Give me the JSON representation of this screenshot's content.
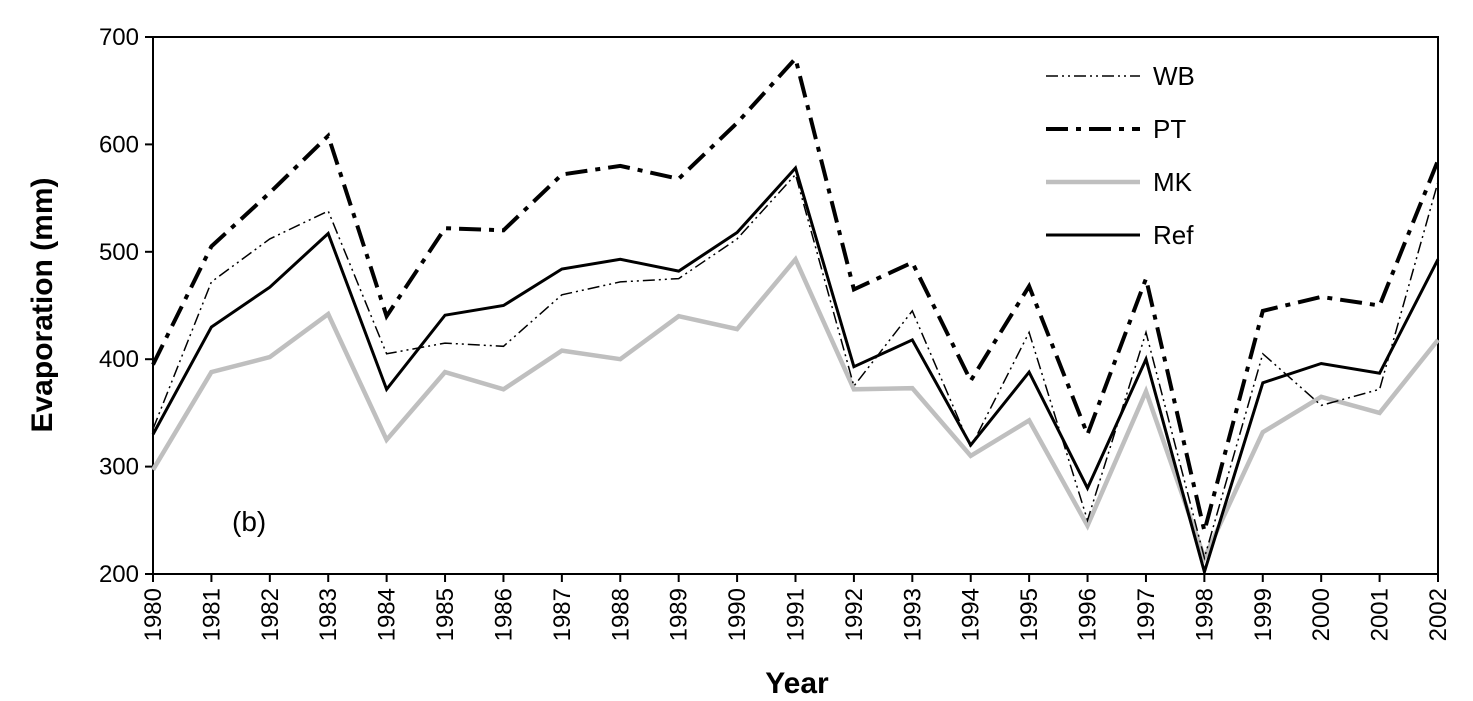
{
  "chart_data": {
    "type": "line",
    "xlabel": "Year",
    "ylabel": "Evaporation (mm)",
    "ylim": [
      200,
      700
    ],
    "yticks": [
      200,
      300,
      400,
      500,
      600,
      700
    ],
    "grid": false,
    "legend_position": "top-right",
    "annotation": "(b)",
    "categories": [
      "1980",
      "1981",
      "1982",
      "1983",
      "1984",
      "1985",
      "1986",
      "1987",
      "1988",
      "1989",
      "1990",
      "1991",
      "1992",
      "1993",
      "1994",
      "1995",
      "1996",
      "1997",
      "1998",
      "1999",
      "2000",
      "2001",
      "2002"
    ],
    "series": [
      {
        "name": "WB",
        "style": "dash-dot-dot-thin",
        "color": "#000000",
        "values": [
          335,
          472,
          512,
          538,
          405,
          415,
          412,
          460,
          472,
          475,
          512,
          572,
          375,
          445,
          318,
          425,
          250,
          425,
          215,
          405,
          357,
          372,
          565
        ]
      },
      {
        "name": "PT",
        "style": "dash-dot-thick",
        "color": "#000000",
        "values": [
          395,
          505,
          555,
          608,
          440,
          522,
          520,
          572,
          580,
          568,
          620,
          680,
          465,
          490,
          380,
          468,
          330,
          475,
          240,
          445,
          458,
          450,
          585
        ]
      },
      {
        "name": "MK",
        "style": "solid-thick-gray",
        "color": "#bfbfbf",
        "values": [
          297,
          388,
          402,
          442,
          325,
          388,
          372,
          408,
          400,
          440,
          428,
          493,
          372,
          373,
          310,
          343,
          245,
          370,
          215,
          332,
          365,
          350,
          418
        ]
      },
      {
        "name": "Ref",
        "style": "solid",
        "color": "#000000",
        "values": [
          330,
          430,
          467,
          517,
          372,
          441,
          450,
          484,
          493,
          482,
          518,
          578,
          393,
          418,
          320,
          388,
          280,
          400,
          202,
          378,
          396,
          387,
          493
        ]
      }
    ]
  }
}
